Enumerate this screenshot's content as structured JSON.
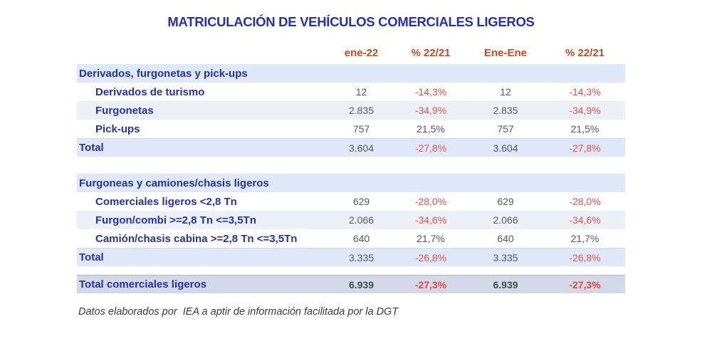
{
  "chart_data": {
    "type": "table",
    "title": "MATRICULACIÓN DE VEHÍCULOS COMERCIALES LIGEROS",
    "columns": [
      "ene-22",
      "% 22/21",
      "Ene-Ene",
      "% 22/21"
    ],
    "sections": [
      {
        "header": "Derivados, furgonetas y pick-ups",
        "rows": [
          {
            "label": "Derivados de turismo",
            "values": [
              "12",
              "-14,3%",
              "12",
              "-14,3%"
            ]
          },
          {
            "label": "Furgonetas",
            "values": [
              "2.835",
              "-34,9%",
              "2.835",
              "-34,9%"
            ]
          },
          {
            "label": "Pick-ups",
            "values": [
              "757",
              "21,5%",
              "757",
              "21,5%"
            ]
          }
        ],
        "total": {
          "label": "Total",
          "values": [
            "3.604",
            "-27,8%",
            "3.604",
            "-27,8%"
          ]
        }
      },
      {
        "header": "Furgoneas y camiones/chasis ligeros",
        "rows": [
          {
            "label": "Comerciales ligeros <2,8 Tn",
            "values": [
              "629",
              "-28,0%",
              "629",
              "-28,0%"
            ]
          },
          {
            "label": "Furgon/combi >=2,8 Tn <=3,5Tn",
            "values": [
              "2.066",
              "-34,6%",
              "2.066",
              "-34,6%"
            ]
          },
          {
            "label": "Camión/chasis cabina >=2,8 Tn <=3,5Tn",
            "values": [
              "640",
              "21,7%",
              "640",
              "21,7%"
            ]
          }
        ],
        "total": {
          "label": "Total",
          "values": [
            "3.335",
            "-26,8%",
            "3.335",
            "-26,8%"
          ]
        }
      }
    ],
    "grand_total": {
      "label": "Total comerciales ligeros",
      "values": [
        "6.939",
        "-27,3%",
        "6.939",
        "-27,3%"
      ]
    },
    "footnote": "Datos elaborados por  IEA a aptir de información facilitada por la DGT",
    "layout": {
      "grid": false,
      "legend": "none"
    }
  },
  "colors": {
    "title_blue": "#2433A0",
    "column_header_orange": "#C54A1F",
    "negative_red": "#E8504A",
    "value_gray": "#56575B",
    "section_row_bg": "#DEE8F8",
    "alt_row_bg": "#EBF1F6",
    "grand_total_bg": "#D4D9E8"
  }
}
